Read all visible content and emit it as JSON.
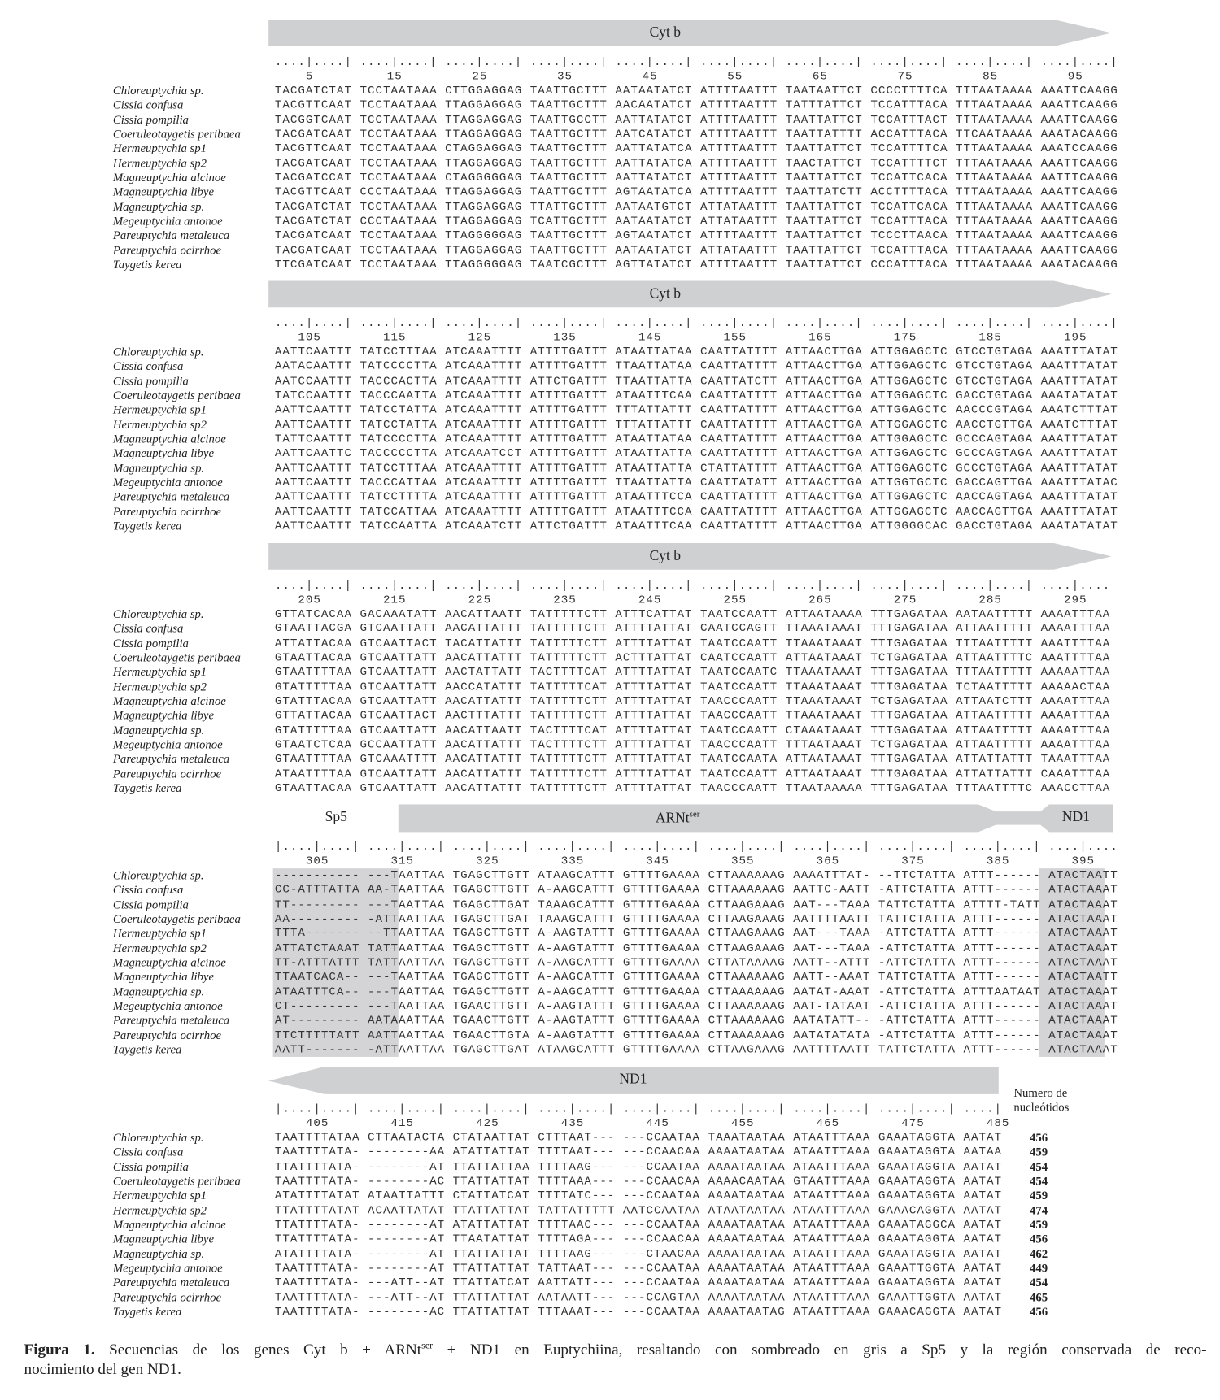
{
  "species": [
    "Chloreuptychia sp.",
    "Cissia confusa",
    "Cissia pompilia",
    "Coeruleotaygetis peribaea",
    "Hermeuptychia sp1",
    "Hermeuptychia sp2",
    "Magneuptychia alcinoe",
    "Magneuptychia libye",
    "Magneuptychia sp.",
    "Megeuptychia antonoe",
    "Pareuptychia metaleuca",
    "Pareuptychia ocirrhoe",
    "Taygetis kerea"
  ],
  "colors": {
    "bar": "#cfd0d2",
    "shade": "#d4d4d6"
  },
  "blocks": [
    {
      "gene_label": "Cyt b",
      "ruler": "....|....| ....|....| ....|....| ....|....| ....|....| ....|....| ....|....| ....|....| ....|....| ....|....|",
      "numbers": [
        "5",
        "15",
        "25",
        "35",
        "45",
        "55",
        "65",
        "75",
        "85",
        "95"
      ],
      "rows": [
        "TACGATCTAT TCCTAATAAA CTTGGAGGAG TAATTGCTTT AATAATATCT ATTTTAATTT TAATAATTCT CCCCTTTTCA TTTAATAAAA AAATTCAAGG",
        "TACGTTCAAT TCCTAATAAA TTAGGAGGAG TAATTGCTTT AACAATATCT ATTTTAATTT TATTTATTCT TCCATTTACA TTTAATAAAA AAATTCAAGG",
        "TACGGTCAAT TCCTAATAAA TTAGGAGGAG TAATTGCCTT AATTATATCT ATTTTAATTT TAATTATTCT TCCATTTACT TTTAATAAAA AAATTCAAGG",
        "TACGATCAAT TCCTAATAAA TTAGGAGGAG TAATTGCTTT AATCATATCT ATTTTAATTT TAATTATTTT ACCATTTACA TTCAATAAAA AAATACAAGG",
        "TACGTTCAAT TCCTAATAAA CTAGGAGGAG TAATTGCTTT AATTATATCA ATTTTAATTT TAATTATTCT TCCATTTTCA TTTAATAAAA AAATCCAAGG",
        "TACGATCAAT TCCTAATAAA TTAGGAGGAG TAATTGCTTT AATTATATCA ATTTTAATTT TAACTATTCT TCCATTTTCT TTTAATAAAA AAATTCAAGG",
        "TACGATCCAT TCCTAATAAA CTAGGGGGAG TAATTGCTTT AATTATATCT ATTTTAATTT TAATTATTCT TCCATTCACA TTTAATAAAA AATTTCAAGG",
        "TACGTTCAAT CCCTAATAAA TTAGGAGGAG TAATTGCTTT AGTAATATCA ATTTTAATTT TAATTATCTT ACCTTTTACA TTTAATAAAA AAATTCAAGG",
        "TACGATCTAT TCCTAATAAA TTAGGAGGAG TTATTGCTTT AATAATGTCT ATTATAATTT TAATTATTCT TCCATTCACA TTTAATAAAA AAATTCAAGG",
        "TACGATCTAT CCCTAATAAA TTAGGAGGAG TCATTGCTTT AATAATATCT ATTATAATTT TAATTATTCT TCCATTTACA TTTAATAAAA AAATTCAAGG",
        "TACGATCAAT TCCTAATAAA TTAGGGGGAG TAATTGCTTT AGTAATATCT ATTTTAATTT TAATTATTCT TCCCTTAACA TTTAATAAAA AAATTCAAGG",
        "TACGATCAAT TCCTAATAAA TTAGGAGGAG TAATTGCTTT AATAATATCT ATTATAATTT TAATTATTCT TCCATTTACA TTTAATAAAA AAATTCAAGG",
        "TTCGATCAAT TCCTAATAAA TTAGGGGGAG TAATCGCTTT AGTTATATCT ATTTTAATTT TAATTATTCT CCCATTTACA TTTAATAAAA AAATACAAGG"
      ]
    },
    {
      "gene_label": "Cyt b",
      "ruler": "....|....| ....|....| ....|....| ....|....| ....|....| ....|....| ....|....| ....|....| ....|....| ....|....|",
      "numbers": [
        "105",
        "115",
        "125",
        "135",
        "145",
        "155",
        "165",
        "175",
        "185",
        "195"
      ],
      "rows": [
        "AATTCAATTT TATCCTTTAA ATCAAATTTT ATTTTGATTT ATAATTATAA CAATTATTTT ATTAACTTGA ATTGGAGCTC GTCCTGTAGA AAATTTATAT",
        "AATACAATTT TATCCCCTTA ATCAAATTTT ATTTTGATTT TTAATTATAA CAATTATTTT ATTAACTTGA ATTGGAGCTC GTCCTGTAGA AAATTTATAT",
        "AATCCAATTT TACCCACTTA ATCAAATTTT ATTCTGATTT TTAATTATTA CAATTATCTT ATTAACTTGA ATTGGAGCTC GTCCTGTAGA AAATTTATAT",
        "TATCCAATTT TACCCAATTA ATCAAATTTT ATTTTGATTT ATAATTTCAA CAATTATTTT ATTAACTTGA ATTGGAGCTC GACCTGTAGA AAATATATAT",
        "AATTCAATTT TATCCTATTA ATCAAATTTT ATTTTGATTT TTTATTATTT CAATTATTTT ATTAACTTGA ATTGGAGCTC AACCCGTAGA AAATCTTTAT",
        "AATTCAATTT TATCCTATTA ATCAAATTTT ATTTTGATTT TTTATTATTT CAATTATTTT ATTAACTTGA ATTGGAGCTC AACCTGTTGA AAATCTTTAT",
        "TATTCAATTT TATCCCCTTA ATCAAATTTT ATTTTGATTT ATAATTATAA CAATTATTTT ATTAACTTGA ATTGGAGCTC GCCCAGTAGA AAATTTATAT",
        "AATTCAATTC TACCCCCTTA ATCAAATCCT ATTTTGATTT ATAATTATTA CAATTATTTT ATTAACTTGA ATTGGAGCTC GCCCAGTAGA AAATTTATAT",
        "AATTCAATTT TATCCTTTAA ATCAAATTTT ATTTTGATTT ATAATTATTA CTATTATTTT ATTAACTTGA ATTGGAGCTC GCCCTGTAGA AAATTTATAT",
        "AATTCAATTT TACCCATTAA ATCAAATTTT ATTTTGATTT TTAATTATTA CAATTATATT ATTAACTTGA ATTGGTGCTC GACCAGTTGA AAATTTATAC",
        "AATTCAATTT TATCCTTTTA ATCAAATTTT ATTTTGATTT ATAATTTCCA CAATTATTTT ATTAACTTGA ATTGGAGCTC AACCAGTAGA AAATTTATAT",
        "AATTCAATTT TATCCATTAA ATCAAATTTT ATTTTGATTT ATAATTTCCA CAATTATTTT ATTAACTTGA ATTGGAGCTC AACCAGTTGA AAATTTATAT",
        "AATTCAATTT TATCCAATTA ATCAAATCTT ATTCTGATTT ATAATTTCAA CAATTATTTT ATTAACTTGA ATTGGGGCAC GACCTGTAGA AAATATATAT"
      ]
    },
    {
      "gene_label": "Cyt b",
      "ruler": "....|....| ....|....| ....|....| ....|....| ....|....| ....|....| ....|....| ....|....| ....|....| ....|....",
      "numbers": [
        "205",
        "215",
        "225",
        "235",
        "245",
        "255",
        "265",
        "275",
        "285",
        "295"
      ],
      "rows": [
        "GTTATCACAA GACAAATATT AACATTAATT TATTTTTCTT ATTTCATTAT TAATCCAATT ATTAATAAAA TTTGAGATAA AATAATTTTT AAAATTTAA",
        "GTAATTACGA GTCAATTATT AACATTATTT TATTTTTCTT ATTTTATTAT CAATCCAGTT TTAAATAAAT TTTGAGATAA ATTAATTTTT AAAATTTAA",
        "ATTATTACAA GTCAATTACT TACATTATTT TATTTTTCTT ATTTTATTAT TAATCCAATT TTAAATAAAT TTTGAGATAA TTTAATTTTT AAATTTTAA",
        "GTAATTACAA GTCAATTATT AACATTATTT TATTTTTCTT ACTTTATTAT CAATCCAATT ATTAATAAAT TCTGAGATAA ATTAATTTTC AAATTTTAA",
        "GTAATTTTAA GTCAATTATT AACTATTATT TACTTTTCAT ATTTTATTAT TAATCCAATC TTAAATAAAT TTTGAGATAA TTTAATTTTT AAAAATTAA",
        "GTATTTTTAA GTCAATTATT AACCATATTT TATTTTTCAT ATTTTATTAT TAATCCAATT TTAAATAAAT TTTGAGATAA TCTAATTTTT AAAAACTAA",
        "GTATTTACAA GTCAATTATT AACATTATTT TATTTTTCTT ATTTTATTAT TAACCCAATT TTAAATAAAT TCTGAGATAA ATTAATCTTT AAAATTTAA",
        "GTTATTACAA GTCAATTACT AACTTTATTT TATTTTTCTT ATTTTATTAT TAACCCAATT TTAAATAAAT TTTGAGATAA ATTAATTTTT AAAATTTAA",
        "GTATTTTTAA GTCAATTATT AACATTAATT TACTTTTCAT ATTTTATTAT TAATCCAATT CTAAATAAAT TTTGAGATAA ATTAATTTTT AAAATTTAA",
        "GTAATCTCAA GCCAATTATT AACATTATTT TACTTTTCTT ATTTTATTAT TAACCCAATT TTTAATAAAT TCTGAGATAA ATTAATTTTT AAAATTTAA",
        "GTAATTTTAA GTCAAATTTT AACATTATTT TATTTTTCTT ATTTTATTAT TAATCCAATA ATTAATAAAT TTTGAGATAA ATTATTATTT TAAATTTAA",
        "ATAATTTTAA GTCAATTATT AACATTATTT TATTTTTCTT ATTTTATTAT TAATCCAATT ATTAATAAAT TTTGAGATAA ATTATTATTT CAAATTTAA",
        "GTAATTACAA GTCAATTATT AACATTATTT TATTTTTCTT ATTTTATTAT TAACCCAATT TTAATAAAAA TTTGAGATAA TTTAATTTTC AAACCTTAA"
      ]
    },
    {
      "sp5_label": "Sp5",
      "gene_label": "ARNt",
      "gene_label_sup": "ser",
      "nd1_label": "ND1",
      "ruler": "|....|....| ....|....| ....|....| ....|....| ....|....| ....|....| ....|....| ....|....| ....|....| ....|....",
      "numbers": [
        "305",
        "315",
        "325",
        "335",
        "345",
        "355",
        "365",
        "375",
        "385",
        "395"
      ],
      "rows": [
        "----------- ---TAATTAA TGAGCTTGTT ATAAGCATTT GTTTTGAAAA CTTAAAAAAG AAAATTTAT- --TTCTATTA ATTT------ ATACTAATT",
        "CC-ATTTATTA AA-TAATTAA TGAGCTTGTT A-AAGCATTT GTTTTGAAAA CTTAAAAAAG AATTC-AATT -ATTCTATTA ATTT------ ATACTAAAT",
        "TT--------- ---TAATTAA TGAGCTTGAT TAAAGCATTT GTTTTGAAAA CTTAAGAAAG AAT---TAAA TATTCTATTA ATTTT-TATT ATACTAAAT",
        "AA--------- -ATTAATTAA TGAGCTTGAT TAAAGCATTT GTTTTGAAAA CTTAAGAAAG AATTTTAATT TATTCTATTA ATTT------ ATACTAAAT",
        "TTTA------- --TTAATTAA TGAGCTTGTT A-AAGTATTT GTTTTGAAAA CTTAAGAAAG AAT---TAAA -ATTCTATTA ATTT------ ATACTAAAT",
        "ATTATCTAAAT TATTAATTAA TGAGCTTGTT A-AAGTATTT GTTTTGAAAA CTTAAGAAAG AAT---TAAA -ATTCTATTA ATTT------ ATACTAAAT",
        "TT-ATTTATTT TATTAATTAA TGAGCTTGTT A-AAGCATTT GTTTTGAAAA CTTATAAAAG AATT--ATTT -ATTCTATTA ATTT------ ATACTAAAT",
        "TTAATCACA-- ---TAATTAA TGAGCTTGTT A-AAGCATTT GTTTTGAAAA CTTAAAAAAG AATT--AAAT TATTCTATTA ATTT------ ATACTAATT",
        "ATAATTTCA-- ---TAATTAA TGAGCTTGTT A-AAGCATTT GTTTTGAAAA CTTAAAAAAG AATAT-AAAT -ATTCTATTA ATTTAATAAT ATACTAAAT",
        "CT--------- ---TAATTAA TGAACTTGTT A-AAGTATTT GTTTTGAAAA CTTAAAAAAG AAT-TATAAT -ATTCTATTA ATTT------ ATACTAAAT",
        "AT--------- AATAAATTAA TGAACTTGTT A-AAGTATTT GTTTTGAAAA CTTAAAAAAG AATATATT-- -ATTCTATTA ATTT------ ATACTAAAT",
        "TTCTTTTTATT AATTAATTAA TGAACTTGTA A-AAGTATTT GTTTTGAAAA CTTAAAAAAG AATATATATA -ATTCTATTA ATTT------ ATACTAAAT",
        "AATT------- -ATTAATTAA TGAGCTTGAT ATAAGCATTT GTTTTGAAAA CTTAAGAAAG AATTTTAATT TATTCTATTA ATTT------ ATACTAAAT"
      ]
    },
    {
      "gene_label": "ND1",
      "count_header": [
        "Numero de",
        "nucleótidos"
      ],
      "ruler": "|....|....| ....|....| ....|....| ....|....| ....|....| ....|....| ....|....| ....|....| ....|",
      "numbers": [
        "405",
        "415",
        "425",
        "435",
        "445",
        "455",
        "465",
        "475",
        "485"
      ],
      "rows": [
        "TAATTTTATAA CTTAATACTA CTATAATTAT CTTTAAT--- ---CCAATAA TAAATAATAA ATAATTTAAA GAAATAGGTA AATAT",
        "TAATTTTATA- --------AA ATATTATTAT TTTTAAT--- ---CCAACAA AAAATAATAA ATAATTTAAA GAAATAGGTA AATAA",
        "TTATTTTATA- --------AT TTATTATTAA TTTTAAG--- ---CCAATAA AAAATAATAA ATAATTTAAA GAAATAGGTA AATAT",
        "TAATTTTATA- --------AC TTATTATTAT TTTTAAA--- ---CCAACAA AAAACAATAA GTAATTTAAA GAAATAGGTA AATAT",
        "ATATTTTATAT ATAATTATTT CTATTATCAT TTTTATC--- ---CCAATAA AAAATAATAA ATAATTTAAA GAAATAGGTA AATAT",
        "TTATTTTATAT ACAATTATAT TTATTATTAT TATTATTTTT AATCCAATAA ATAATAATAA ATAATTTAAA GAAACAGGTA AATAT",
        "TTATTTTATA- --------AT ATATTATTAT TTTTAAC--- ---CCAATAA AAAATAATAA ATAATTTAAA GAAATAGGCA AATAT",
        "TTATTTTATA- --------AT TTAATATTAT TTTTAGA--- ---CCAACAA AAAATAATAA ATAATTTAAA GAAATAGGTA AATAT",
        "ATATTTTATA- --------AT TTATTATTAT TTTTAAG--- ---CTAACAA AAAATAATAA ATAATTTAAA GAAATAGGTA AATAT",
        "TAATTTTATA- --------AT TTATTATTAT TATTAAT--- ---CCAATAA AAAATAATAA ATAATTTAAA GAAATTGGTA AATAT",
        "TAATTTTATA- ---ATT--AT TTATTATCAT AATTATT--- ---CCAATAA AAAATAATAA ATAATTTAAA GAAATAGGTA AATAT",
        "TAATTTTATA- ---ATT--AT TTATTATTAT AATAATT--- ---CCAGTAA AAAATAATAA ATAATTTAAA GAAATTGGTA AATAT",
        "TAATTTTATA- --------AC TTATTATTAT TTTAAAT--- ---CCAATAA AAAATAATAG ATAATTTAAA GAAACAGGTA AATAT"
      ],
      "counts": [
        "456",
        "459",
        "454",
        "454",
        "459",
        "474",
        "459",
        "456",
        "462",
        "449",
        "454",
        "465",
        "456"
      ]
    }
  ],
  "caption": {
    "label": "Figura 1.",
    "line1_a": " Secuencias de los genes Cyt b + ARNt",
    "line1_sup": "ser",
    "line1_b": " + ND1 en Euptychiina, resaltando con sombreado en gris a Sp5 y la región conservada de reco-",
    "line2": "nocimiento del gen ND1."
  }
}
